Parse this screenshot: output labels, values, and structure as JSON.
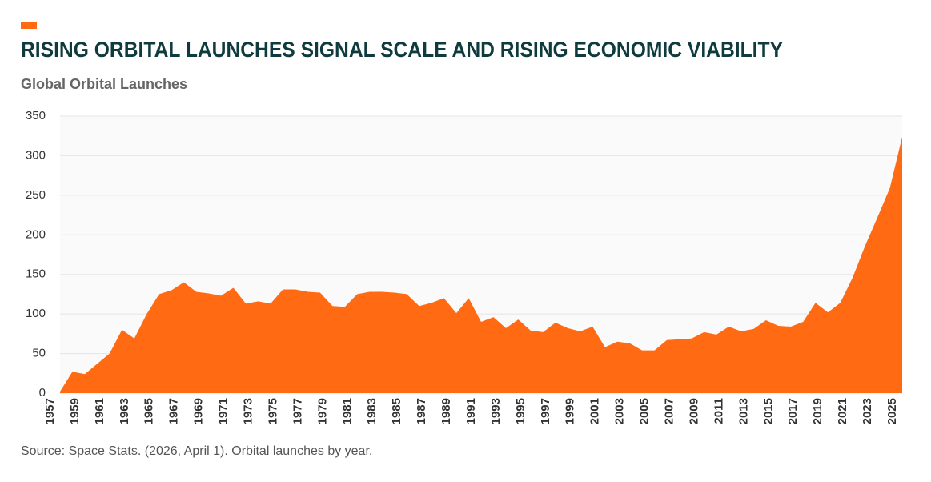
{
  "chart_data": {
    "type": "area",
    "title": "RISING ORBITAL LAUNCHES SIGNAL SCALE AND RISING ECONOMIC VIABILITY",
    "subtitle": "Global Orbital Launches",
    "source": "Source: Space Stats. (2026, April 1). Orbital launches by year.",
    "color": "#ff6a13",
    "x": [
      1957,
      1958,
      1959,
      1960,
      1961,
      1962,
      1963,
      1964,
      1965,
      1966,
      1967,
      1968,
      1969,
      1970,
      1971,
      1972,
      1973,
      1974,
      1975,
      1976,
      1977,
      1978,
      1979,
      1980,
      1981,
      1982,
      1983,
      1984,
      1985,
      1986,
      1987,
      1988,
      1989,
      1990,
      1991,
      1992,
      1993,
      1994,
      1995,
      1996,
      1997,
      1998,
      1999,
      2000,
      2001,
      2002,
      2003,
      2004,
      2005,
      2006,
      2007,
      2008,
      2009,
      2010,
      2011,
      2012,
      2013,
      2014,
      2015,
      2016,
      2017,
      2018,
      2019,
      2020,
      2021,
      2022,
      2023,
      2024,
      2025
    ],
    "values": [
      2,
      27,
      24,
      37,
      50,
      80,
      69,
      100,
      125,
      130,
      140,
      128,
      126,
      123,
      133,
      113,
      116,
      113,
      131,
      131,
      128,
      127,
      110,
      109,
      125,
      128,
      128,
      127,
      125,
      110,
      114,
      120,
      101,
      120,
      90,
      96,
      82,
      93,
      79,
      77,
      89,
      82,
      78,
      84,
      58,
      65,
      63,
      54,
      54,
      67,
      68,
      69,
      77,
      74,
      84,
      78,
      81,
      92,
      85,
      84,
      90,
      114,
      102,
      114,
      146,
      186,
      222,
      259,
      324
    ],
    "xlim": [
      1957,
      2025
    ],
    "xticks": [
      1957,
      1959,
      1961,
      1963,
      1965,
      1967,
      1969,
      1971,
      1973,
      1975,
      1977,
      1979,
      1981,
      1983,
      1985,
      1987,
      1989,
      1991,
      1993,
      1995,
      1997,
      1999,
      2001,
      2003,
      2005,
      2007,
      2009,
      2011,
      2013,
      2015,
      2017,
      2019,
      2021,
      2023,
      2025
    ],
    "ylim": [
      0,
      350
    ],
    "yticks": [
      0,
      50,
      100,
      150,
      200,
      250,
      300,
      350
    ],
    "grid": true
  }
}
